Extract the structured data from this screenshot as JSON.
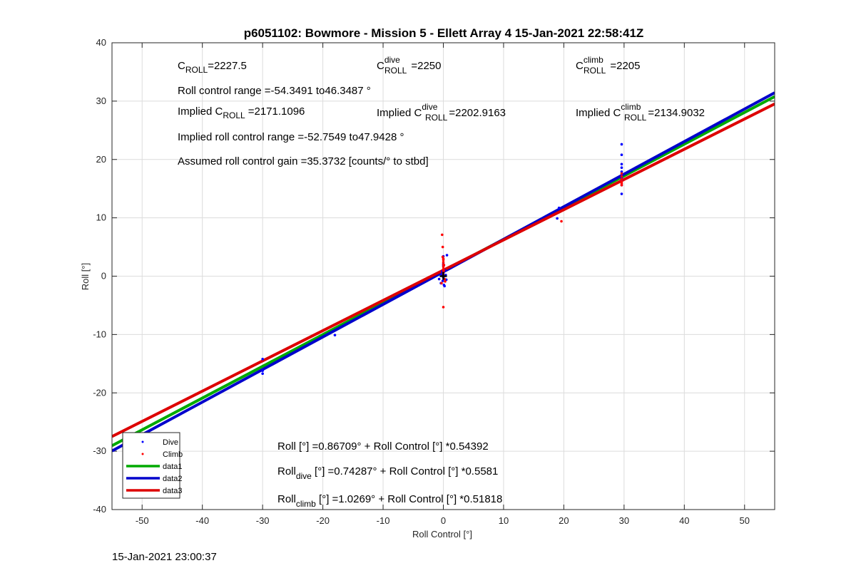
{
  "chart_data": {
    "type": "scatter",
    "title": "p6051102: Bowmore - Mission 5 - Ellett Array 4 15-Jan-2021 22:58:41Z",
    "xlabel": "Roll Control [°]",
    "ylabel": "Roll [°]",
    "xlim": [
      -55,
      55
    ],
    "ylim": [
      -40,
      40
    ],
    "xticks": [
      -50,
      -40,
      -30,
      -20,
      -10,
      0,
      10,
      20,
      30,
      40,
      50
    ],
    "yticks": [
      -40,
      -30,
      -20,
      -10,
      0,
      10,
      20,
      30,
      40
    ],
    "grid": true,
    "legend_position": "bottom-left",
    "series": [
      {
        "name": "Dive",
        "kind": "points",
        "color": "#0000ff",
        "x": [
          -30,
          -30,
          -30,
          -18,
          -0.7,
          -0.4,
          -0.3,
          -0.2,
          -0.1,
          0,
          0,
          0.1,
          0.2,
          0.3,
          0.4,
          0.5,
          0.6,
          0,
          0,
          18.9,
          19.2,
          29.6,
          29.6,
          29.6,
          29.6,
          29.6,
          29.6,
          29.6,
          29.6,
          29.6,
          29.6
        ],
        "y": [
          -14.2,
          -16.2,
          -16.7,
          -10.1,
          -0.5,
          -1.2,
          0.3,
          0.8,
          -0.8,
          2.1,
          3.4,
          -1.5,
          -1.7,
          1.0,
          0.2,
          -0.6,
          3.6,
          1.8,
          -0.2,
          9.9,
          11.7,
          22.6,
          20.8,
          19.2,
          18.6,
          17.9,
          17.4,
          16.8,
          15.6,
          14.1,
          16.5
        ]
      },
      {
        "name": "Climb",
        "kind": "points",
        "color": "#ff0000",
        "x": [
          -0.2,
          -0.1,
          -0.1,
          0,
          0,
          0,
          0,
          0,
          0,
          0,
          0.1,
          0.1,
          0.2,
          0.3,
          -0.3,
          0,
          0,
          19.6,
          29.6,
          29.6,
          29.6,
          29.6,
          29.6,
          29.6
        ],
        "y": [
          7.1,
          5.0,
          3.3,
          2.8,
          2.4,
          2.0,
          1.6,
          1.2,
          0.8,
          0.4,
          1.9,
          1.0,
          -0.5,
          -0.9,
          -1.2,
          -5.3,
          3.0,
          9.4,
          17.6,
          17.1,
          16.6,
          16.2,
          15.9,
          15.6
        ]
      },
      {
        "name": "data1",
        "kind": "line",
        "color": "#00aa00",
        "intercept": 0.86709,
        "slope": 0.54392
      },
      {
        "name": "data2",
        "kind": "line",
        "color": "#0000cc",
        "intercept": 0.74287,
        "slope": 0.5581
      },
      {
        "name": "data3",
        "kind": "line",
        "color": "#dd0000",
        "intercept": 1.0269,
        "slope": 0.51818
      }
    ],
    "annotations": {
      "c_roll": {
        "base": "C",
        "sub": "ROLL",
        "value": "=2227.5"
      },
      "c_roll_dive": {
        "base": "C",
        "sub": "ROLL",
        "sup": "dive",
        "value": "=2250"
      },
      "c_roll_climb": {
        "base": "C",
        "sub": "ROLL",
        "sup": "climb",
        "value": "=2205"
      },
      "roll_control_range": "Roll control range =-54.3491 to46.3487 °",
      "implied_c_roll": {
        "prefix": "Implied C",
        "sub": "ROLL",
        "value": "=2171.1096"
      },
      "implied_c_roll_dive": {
        "prefix": "Implied C",
        "sub": "ROLL",
        "sup": "dive",
        "value": "=2202.9163"
      },
      "implied_c_roll_climb": {
        "prefix": "Implied C",
        "sub": "ROLL",
        "sup": "climb",
        "value": "=2134.9032"
      },
      "implied_range": "Implied roll control range =-52.7549 to47.9428 °",
      "gain": "Assumed roll control gain =35.3732 [counts/° to stbd]",
      "fit_all": "Roll [°] =0.86709° + Roll Control [°] *0.54392",
      "fit_dive": {
        "base": "Roll",
        "sub": "dive",
        "rest": " [°] =0.74287° + Roll Control [°] *0.5581"
      },
      "fit_climb": {
        "base": "Roll",
        "sub": "climb",
        "rest": " [°] =1.0269° + Roll Control [°] *0.51818"
      }
    },
    "marker": {
      "color": "#000000",
      "x": 0,
      "y": 0
    }
  },
  "timestamp": "15-Jan-2021 23:00:37"
}
